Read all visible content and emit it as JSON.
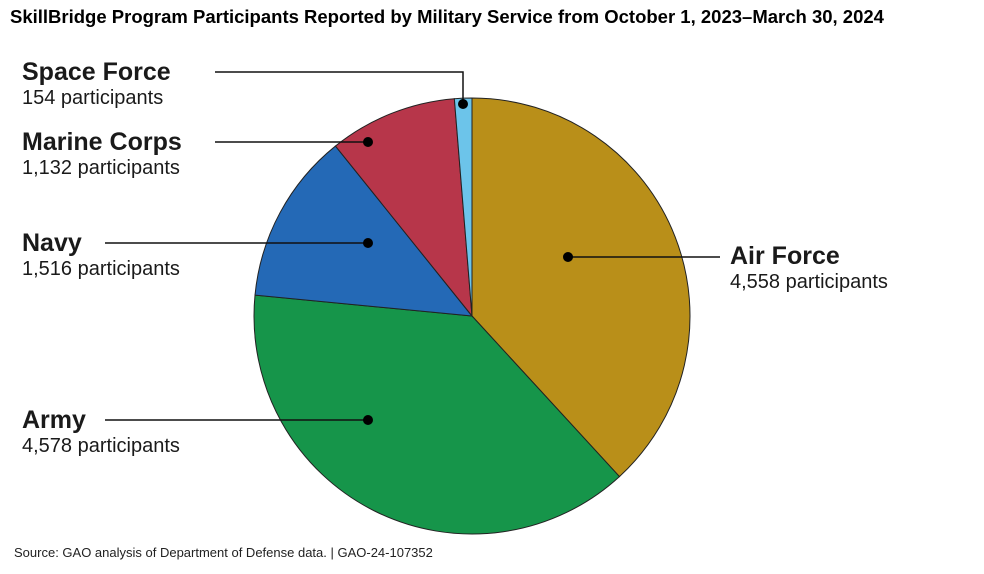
{
  "chart_data": {
    "type": "pie",
    "title": "SkillBridge Program Participants Reported by Military Service from October 1, 2023–March 30, 2024",
    "source": "Source: GAO analysis of Department of Defense data.  |  GAO-24-107352",
    "slices": [
      {
        "name": "Air Force",
        "value": 4558,
        "value_label": "4,558 participants",
        "color": "#B98F19"
      },
      {
        "name": "Army",
        "value": 4578,
        "value_label": "4,578 participants",
        "color": "#16954A"
      },
      {
        "name": "Navy",
        "value": 1516,
        "value_label": "1,516 participants",
        "color": "#2469B6"
      },
      {
        "name": "Marine Corps",
        "value": 1132,
        "value_label": "1,132 participants",
        "color": "#B7364A"
      },
      {
        "name": "Space Force",
        "value": 154,
        "value_label": "154 participants",
        "color": "#6CC4EA"
      }
    ]
  }
}
